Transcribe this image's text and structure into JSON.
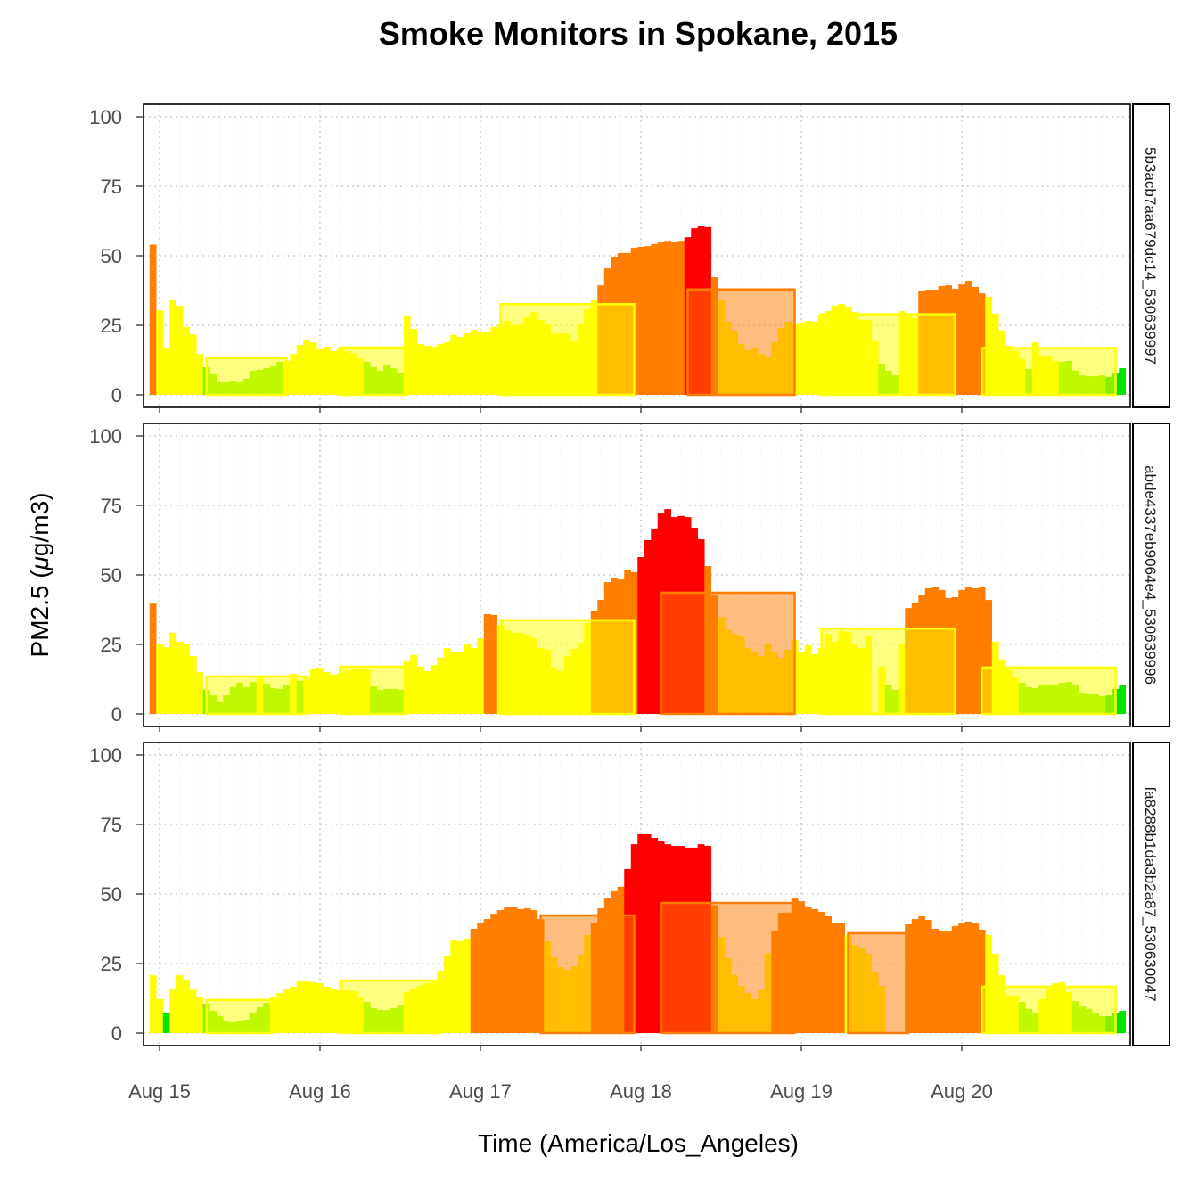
{
  "chart_data": {
    "type": "bar",
    "title": "Smoke Monitors in Spokane, 2015",
    "xlabel": "Time (America/Los_Angeles)",
    "ylabel_prefix": "PM2.5 (",
    "ylabel_mu": "μ",
    "ylabel_suffix": "g/m3)",
    "ylim": [
      0,
      100
    ],
    "y_ticks": [
      "0",
      "25",
      "50",
      "75",
      "100"
    ],
    "x_ticks": [
      "Aug 15",
      "Aug 16",
      "Aug 17",
      "Aug 18",
      "Aug 19",
      "Aug 20"
    ],
    "x_range": [
      "2015-08-14 23:00",
      "2015-08-21 00:00"
    ],
    "first_hour": "2015-08-14 23:00",
    "interval": "1 hour",
    "grid": true,
    "aqi_colors": {
      "G": "#00e400",
      "L": "#80f000",
      "Y": "#ffff00",
      "O": "#ff7e00",
      "R": "#ff0000"
    },
    "panels": [
      {
        "name": "5b3acb7aa679dc14_530639997",
        "values": [
          54,
          30.4,
          17,
          34,
          32,
          24.4,
          21.8,
          14.7,
          9.9,
          7.4,
          4.5,
          4.5,
          5.1,
          4.8,
          5.8,
          8.7,
          9,
          9.6,
          10.3,
          11.9,
          12.2,
          14.7,
          17.9,
          19.9,
          18.9,
          16.7,
          17.3,
          15.7,
          17,
          15.7,
          15,
          13.1,
          11.9,
          9.9,
          8.7,
          10.6,
          9.6,
          8,
          28.2,
          23.7,
          18.3,
          17.6,
          17.3,
          18.3,
          18.9,
          21.5,
          20.8,
          22.1,
          23.4,
          22.8,
          22.4,
          24.4,
          25.3,
          26.6,
          25,
          25.3,
          27.9,
          29.8,
          26.9,
          25.3,
          22.1,
          22.1,
          22.1,
          19.6,
          25.6,
          30.8,
          34,
          39.4,
          45.5,
          49.7,
          51,
          51,
          52.9,
          53.2,
          53.5,
          54.2,
          54.8,
          55.4,
          54.8,
          55.4,
          56.7,
          59.9,
          60.6,
          60.3,
          42.3,
          34,
          26.3,
          23.1,
          18.3,
          16,
          17,
          14.7,
          13.8,
          18.9,
          24,
          26.3,
          25.6,
          26,
          26.6,
          26.3,
          28.8,
          30.1,
          32,
          32.7,
          31.7,
          29.8,
          26.9,
          26.9,
          19.6,
          11.2,
          8.7,
          7,
          30.1,
          28.8,
          27.6,
          37.5,
          37.8,
          37.8,
          39.1,
          39.4,
          38.1,
          39.7,
          41,
          38.8,
          36.5,
          35.3,
          29.2,
          23.1,
          17.6,
          15.7,
          12.8,
          9.3,
          18.9,
          14.1,
          14.1,
          12.2,
          11.9,
          12.2,
          8.7,
          7,
          6.7,
          6.7,
          7,
          6.4,
          7.7,
          9.6
        ],
        "aqi": "OYYYYYYYLLLLLLLLLLLLYYYYYYYYYYYYLLLLLLYYYYYYYYYYYYYYYYYYYYYYYYYYYYYOOOOOOOOOOOOORRRROYYYYYYYYYYYYYYYYYYYYYYYYLLLYYYOOOOOOOOOOYYYYYYLYYYYLLLLLLLGGG",
        "daily_boxes": [
          {
            "start": "2015-08-15 07:00",
            "end": "2015-08-15 19:00",
            "value": 13.2,
            "aqi": "Y"
          },
          {
            "start": "2015-08-16 03:00",
            "end": "2015-08-16 13:00",
            "value": 17,
            "aqi": "Y"
          },
          {
            "start": "2015-08-17 03:00",
            "end": "2015-08-17 23:00",
            "value": 32.6,
            "aqi": "Y"
          },
          {
            "start": "2015-08-18 07:00",
            "end": "2015-08-18 23:00",
            "value": 37.9,
            "aqi": "O"
          },
          {
            "start": "2015-08-19 03:00",
            "end": "2015-08-19 23:00",
            "value": 29,
            "aqi": "Y"
          },
          {
            "start": "2015-08-20 03:00",
            "end": "2015-08-20 23:00",
            "value": 16.8,
            "aqi": "Y"
          }
        ]
      },
      {
        "name": "abde4337eb9064e4_530639996",
        "values": [
          39.7,
          25.3,
          24,
          29.2,
          26,
          25,
          20.8,
          15.1,
          8.7,
          6.7,
          4.5,
          6.7,
          9.6,
          11.2,
          9.6,
          11.5,
          13.1,
          10.9,
          9.3,
          9,
          10.6,
          14.4,
          11.9,
          13.1,
          16,
          16.7,
          15.1,
          14.1,
          14.7,
          15.7,
          16,
          16,
          16,
          9.9,
          8.7,
          9,
          9,
          8.7,
          18.9,
          21.2,
          17.1,
          15.4,
          17.6,
          20.2,
          23.7,
          22.1,
          22.4,
          25.3,
          23.7,
          27.2,
          35.9,
          35.6,
          32,
          30.1,
          29.2,
          29.2,
          28.5,
          27.2,
          23.7,
          23.1,
          16.7,
          15.4,
          20.8,
          23.4,
          25.6,
          32.7,
          36.9,
          41,
          47.4,
          49,
          48.4,
          51.6,
          51,
          56.4,
          62.5,
          66.7,
          72.1,
          73.7,
          70.8,
          71.2,
          70.8,
          67,
          62.8,
          53.2,
          42.6,
          34.9,
          30.4,
          28.8,
          27.9,
          23.7,
          22.1,
          20.8,
          25,
          22.1,
          20.2,
          23.1,
          26.6,
          22.4,
          24.7,
          21.5,
          23.7,
          28.8,
          26,
          29.8,
          29.5,
          25,
          23.7,
          28.2,
          0.5,
          17,
          10.6,
          8.7,
          25.3,
          38.1,
          40.1,
          42.6,
          45.2,
          45.5,
          44.6,
          41.7,
          42,
          44.6,
          45.8,
          45.2,
          45.8,
          41,
          26,
          19.6,
          15.7,
          13.1,
          11.2,
          9.6,
          9.3,
          10.3,
          10.6,
          10.6,
          11.2,
          11.5,
          10.3,
          7.7,
          7.1,
          7.1,
          6.4,
          6.7,
          9,
          10.3
        ],
        "aqi": "OYYYYYYYLLLLLLLLYLLLLYLYYYYYYYYYYLLLLLYYYYYYYYYYYYOOYYYYYYYYYYYYYYOOOOOOORRRRRRRRRROOYYYYYYYYYYYYYYYYYYYYYYYYYLLYOOOOOOOOOOOOOYYYYLLLLLLLLLLLLLGGG",
        "daily_boxes": [
          {
            "start": "2015-08-15 07:00",
            "end": "2015-08-15 22:00",
            "value": 13.5,
            "aqi": "Y"
          },
          {
            "start": "2015-08-16 03:00",
            "end": "2015-08-16 13:00",
            "value": 17,
            "aqi": "Y"
          },
          {
            "start": "2015-08-17 03:00",
            "end": "2015-08-17 23:00",
            "value": 33.7,
            "aqi": "Y"
          },
          {
            "start": "2015-08-18 03:00",
            "end": "2015-08-18 23:00",
            "value": 43.6,
            "aqi": "O"
          },
          {
            "start": "2015-08-19 03:00",
            "end": "2015-08-19 23:00",
            "value": 30.7,
            "aqi": "Y"
          },
          {
            "start": "2015-08-20 03:00",
            "end": "2015-08-20 23:00",
            "value": 16.7,
            "aqi": "Y"
          }
        ]
      },
      {
        "name": "fa8288b1da3b2a87_530630047",
        "values": [
          20.8,
          12.2,
          7.4,
          16,
          20.8,
          19.2,
          16,
          13.1,
          10.6,
          8,
          6.1,
          4.5,
          4.2,
          4.5,
          4.8,
          7.1,
          9.3,
          10.9,
          12.8,
          14.4,
          15.7,
          16.7,
          18.6,
          18.6,
          18.3,
          17.9,
          16.7,
          15.7,
          15.4,
          15.4,
          15.1,
          13.1,
          11.2,
          9,
          8.3,
          8.3,
          9,
          9.9,
          14.7,
          16,
          17,
          17.9,
          18.9,
          22.4,
          27.9,
          33.3,
          33,
          34,
          37.5,
          39.7,
          41,
          42.9,
          44.2,
          45.5,
          45.2,
          44.6,
          44.9,
          44.2,
          41,
          33,
          27.2,
          23.7,
          22.8,
          24,
          28.2,
          35.3,
          39.7,
          44.9,
          48.7,
          51,
          52.6,
          59,
          67.9,
          71.5,
          71.5,
          70.2,
          69.2,
          67.9,
          67.3,
          67.3,
          66.7,
          66.7,
          67.9,
          67.3,
          46,
          34.6,
          26.9,
          20.8,
          17,
          14.4,
          12.2,
          15.4,
          28.8,
          36.9,
          43.3,
          43.3,
          48.4,
          47.4,
          45.2,
          44.6,
          43.6,
          42,
          39.4,
          39.7,
          35.3,
          31.7,
          30.8,
          28.5,
          21.8,
          17,
          null,
          null,
          null,
          39.1,
          41,
          42,
          40.7,
          37.5,
          36.5,
          36.5,
          38.5,
          39.4,
          40.1,
          39.4,
          37.2,
          35.3,
          28.5,
          20.8,
          13.5,
          13.5,
          11.2,
          8.7,
          7.4,
          12.2,
          16,
          17.9,
          18.3,
          14.7,
          11.5,
          9.6,
          8.7,
          7.1,
          6.1,
          6.1,
          7.1,
          8
        ],
        "aqi": "YYGYYYYYLLLLLLLLLLYYYYYYYYYYYYYYLLLLLLYYYYYYYYYYOOOOOOOOOOOYYYYYYYOOOOORRRRRRRRRRRRROYYYYYYYYOOOOOOOOOOOYYYYYYYYYOOOOOOOOOOOOYYYYYLLLYYYYYLLLLLGGG",
        "daily_boxes": [
          {
            "start": "2015-08-15 07:00",
            "end": "2015-08-15 17:00",
            "value": 11.9,
            "aqi": "Y"
          },
          {
            "start": "2015-08-16 03:00",
            "end": "2015-08-16 18:00",
            "value": 18.9,
            "aqi": "Y"
          },
          {
            "start": "2015-08-17 09:00",
            "end": "2015-08-17 23:00",
            "value": 42.3,
            "aqi": "O"
          },
          {
            "start": "2015-08-18 03:00",
            "end": "2015-08-18 23:00",
            "value": 46.8,
            "aqi": "O"
          },
          {
            "start": "2015-08-19 07:00",
            "end": "2015-08-19 16:00",
            "value": 35.9,
            "aqi": "O"
          },
          {
            "start": "2015-08-20 03:00",
            "end": "2015-08-20 23:00",
            "value": 16.7,
            "aqi": "Y"
          }
        ]
      }
    ]
  }
}
